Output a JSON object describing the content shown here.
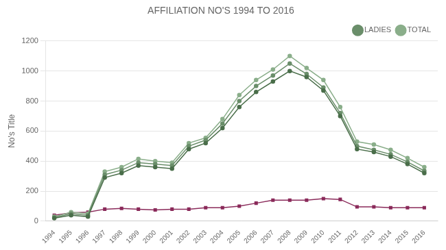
{
  "chart_data": {
    "type": "line",
    "title": "AFFILIATION NO'S 1994 TO 2016",
    "ylabel": "No's Title",
    "x": [
      1994,
      1995,
      1996,
      1997,
      1998,
      1999,
      2000,
      2001,
      2002,
      2003,
      2004,
      2005,
      2006,
      2007,
      2008,
      2009,
      2010,
      2011,
      2012,
      2013,
      2014,
      2015,
      2016
    ],
    "series": [
      {
        "color": "#4a6e4a",
        "marker": "circle",
        "values": [
          20,
          40,
          30,
          290,
          320,
          370,
          360,
          350,
          480,
          520,
          620,
          760,
          860,
          930,
          1000,
          960,
          870,
          700,
          480,
          460,
          430,
          380,
          320
        ]
      },
      {
        "name": "LADIES",
        "color": "#6a8e6a",
        "marker": "circle",
        "values": [
          25,
          50,
          40,
          310,
          340,
          390,
          380,
          370,
          500,
          540,
          650,
          800,
          900,
          970,
          1050,
          980,
          890,
          720,
          500,
          475,
          445,
          395,
          335
        ]
      },
      {
        "name": "TOTAL",
        "color": "#8aae8a",
        "marker": "circle",
        "values": [
          30,
          60,
          50,
          330,
          360,
          415,
          400,
          390,
          520,
          555,
          680,
          840,
          940,
          1010,
          1100,
          1020,
          940,
          760,
          530,
          510,
          475,
          420,
          360
        ]
      },
      {
        "color": "#8a2a5a",
        "marker": "square",
        "values": [
          40,
          55,
          60,
          80,
          85,
          80,
          75,
          80,
          80,
          90,
          90,
          100,
          120,
          140,
          140,
          140,
          150,
          145,
          95,
          95,
          90,
          90,
          90
        ]
      }
    ],
    "xlim": [
      1993.5,
      2016.8
    ],
    "xticks": [
      1994,
      1995,
      1996,
      1997,
      1998,
      1999,
      2000,
      2001,
      2002,
      2003,
      2004,
      2005,
      2006,
      2007,
      2008,
      2009,
      2010,
      2011,
      2012,
      2013,
      2014,
      2015,
      2016
    ],
    "ylim": [
      0,
      1200
    ],
    "yticks": [
      0,
      200,
      400,
      600,
      800,
      1000,
      1200
    ],
    "grid": "y",
    "legend": "upper right"
  }
}
